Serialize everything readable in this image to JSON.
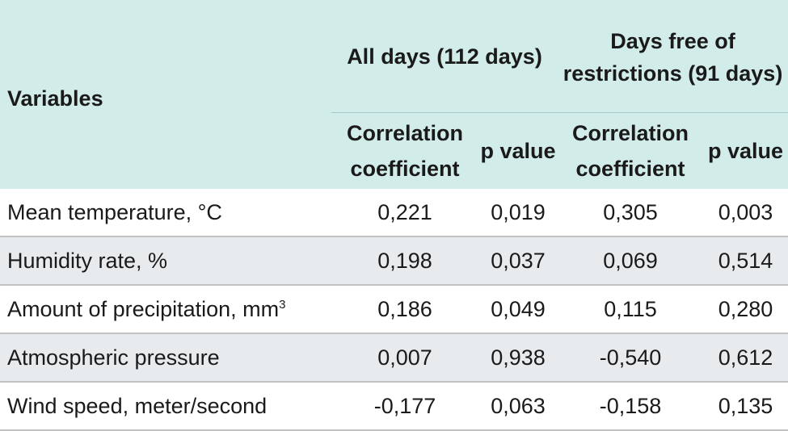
{
  "header": {
    "variables": "Variables",
    "group_all": "All days (112 days)",
    "group_free": "Days free of restrictions (91 days)",
    "corr_coef": "Correlation coefficient",
    "p_value": "p value"
  },
  "rows": [
    {
      "label": "Mean temperature, °C",
      "sup": "",
      "all_r": "0,221",
      "all_p": "0,019",
      "free_r": "0,305",
      "free_p": "0,003"
    },
    {
      "label": "Humidity rate, %",
      "sup": "",
      "all_r": "0,198",
      "all_p": "0,037",
      "free_r": "0,069",
      "free_p": "0,514"
    },
    {
      "label": "Amount of precipitation, mm",
      "sup": "3",
      "all_r": "0,186",
      "all_p": "0,049",
      "free_r": "0,115",
      "free_p": "0,280"
    },
    {
      "label": "Atmospheric pressure",
      "sup": "",
      "all_r": "0,007",
      "all_p": "0,938",
      "free_r": "-0,540",
      "free_p": "0,612"
    },
    {
      "label": "Wind speed, meter/second",
      "sup": "",
      "all_r": "-0,177",
      "all_p": "0,063",
      "free_r": "-0,158",
      "free_p": "0,135"
    }
  ],
  "colors": {
    "header_bg": "#d2ecea",
    "stripe_bg": "#e7ebee",
    "rule": "#c2c2c2"
  }
}
